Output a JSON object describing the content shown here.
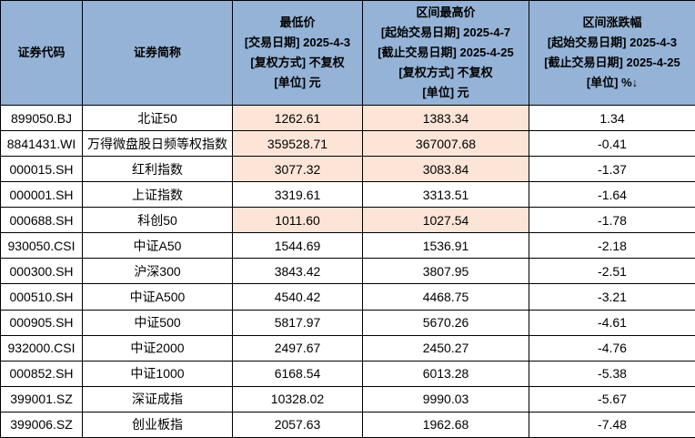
{
  "colors": {
    "header_bg": "#95b3d7",
    "highlight_bg": "#fce4d6",
    "row_bg": "#ffffff",
    "border": "#000000",
    "text": "#000000"
  },
  "table": {
    "headers": [
      {
        "id": "code",
        "lines": [
          "证券代码"
        ]
      },
      {
        "id": "name",
        "lines": [
          "证券简称"
        ]
      },
      {
        "id": "low",
        "lines": [
          "最低价",
          "[交易日期] 2025-4-3",
          "[复权方式] 不复权",
          "[单位] 元"
        ]
      },
      {
        "id": "high",
        "lines": [
          "区间最高价",
          "[起始交易日期] 2025-4-7",
          "[截止交易日期] 2025-4-25",
          "[复权方式] 不复权",
          "[单位] 元"
        ]
      },
      {
        "id": "change",
        "lines": [
          "区间涨跌幅",
          "[起始交易日期] 2025-4-3",
          "[截止交易日期] 2025-4-25",
          "[单位] %↓"
        ]
      }
    ],
    "sort_icon": "↓",
    "rows": [
      {
        "code": "899050.BJ",
        "name": "北证50",
        "low": "1262.61",
        "high": "1383.34",
        "change": "1.34",
        "highlight": true
      },
      {
        "code": "8841431.WI",
        "name": "万得微盘股日频等权指数",
        "low": "359528.71",
        "high": "367007.68",
        "change": "-0.41",
        "highlight": true
      },
      {
        "code": "000015.SH",
        "name": "红利指数",
        "low": "3077.32",
        "high": "3083.84",
        "change": "-1.37",
        "highlight": true
      },
      {
        "code": "000001.SH",
        "name": "上证指数",
        "low": "3319.61",
        "high": "3313.51",
        "change": "-1.64",
        "highlight": false
      },
      {
        "code": "000688.SH",
        "name": "科创50",
        "low": "1011.60",
        "high": "1027.54",
        "change": "-1.78",
        "highlight": true
      },
      {
        "code": "930050.CSI",
        "name": "中证A50",
        "low": "1544.69",
        "high": "1536.91",
        "change": "-2.18",
        "highlight": false
      },
      {
        "code": "000300.SH",
        "name": "沪深300",
        "low": "3843.42",
        "high": "3807.95",
        "change": "-2.51",
        "highlight": false
      },
      {
        "code": "000510.SH",
        "name": "中证A500",
        "low": "4540.42",
        "high": "4468.75",
        "change": "-3.21",
        "highlight": false
      },
      {
        "code": "000905.SH",
        "name": "中证500",
        "low": "5817.97",
        "high": "5670.26",
        "change": "-4.61",
        "highlight": false
      },
      {
        "code": "932000.CSI",
        "name": "中证2000",
        "low": "2497.67",
        "high": "2450.27",
        "change": "-4.76",
        "highlight": false
      },
      {
        "code": "000852.SH",
        "name": "中证1000",
        "low": "6168.54",
        "high": "6013.28",
        "change": "-5.38",
        "highlight": false
      },
      {
        "code": "399001.SZ",
        "name": "深证成指",
        "low": "10328.02",
        "high": "9990.03",
        "change": "-5.67",
        "highlight": false
      },
      {
        "code": "399006.SZ",
        "name": "创业板指",
        "low": "2057.63",
        "high": "1962.68",
        "change": "-7.48",
        "highlight": false
      }
    ]
  },
  "chart_data": {
    "type": "table",
    "columns": [
      "证券代码",
      "证券简称",
      "最低价 [交易日期] 2025-4-3 [复权方式] 不复权 [单位] 元",
      "区间最高价 [起始交易日期] 2025-4-7 [截止交易日期] 2025-4-25 [复权方式] 不复权 [单位] 元",
      "区间涨跌幅 [起始交易日期] 2025-4-3 [截止交易日期] 2025-4-25 [单位] %↓"
    ],
    "rows": [
      [
        "899050.BJ",
        "北证50",
        1262.61,
        1383.34,
        1.34
      ],
      [
        "8841431.WI",
        "万得微盘股日频等权指数",
        359528.71,
        367007.68,
        -0.41
      ],
      [
        "000015.SH",
        "红利指数",
        3077.32,
        3083.84,
        -1.37
      ],
      [
        "000001.SH",
        "上证指数",
        3319.61,
        3313.51,
        -1.64
      ],
      [
        "000688.SH",
        "科创50",
        1011.6,
        1027.54,
        -1.78
      ],
      [
        "930050.CSI",
        "中证A50",
        1544.69,
        1536.91,
        -2.18
      ],
      [
        "000300.SH",
        "沪深300",
        3843.42,
        3807.95,
        -2.51
      ],
      [
        "000510.SH",
        "中证A500",
        4540.42,
        4468.75,
        -3.21
      ],
      [
        "000905.SH",
        "中证500",
        5817.97,
        5670.26,
        -4.61
      ],
      [
        "932000.CSI",
        "中证2000",
        2497.67,
        2450.27,
        -4.76
      ],
      [
        "000852.SH",
        "中证1000",
        6168.54,
        6013.28,
        -5.38
      ],
      [
        "399001.SZ",
        "深证成指",
        10328.02,
        9990.03,
        -5.67
      ],
      [
        "399006.SZ",
        "创业板指",
        2057.63,
        1962.68,
        -7.48
      ]
    ],
    "layout": {
      "sorted_by": "区间涨跌幅 descending",
      "highlighted_price_rows": [
        0,
        1,
        2,
        4
      ]
    }
  }
}
